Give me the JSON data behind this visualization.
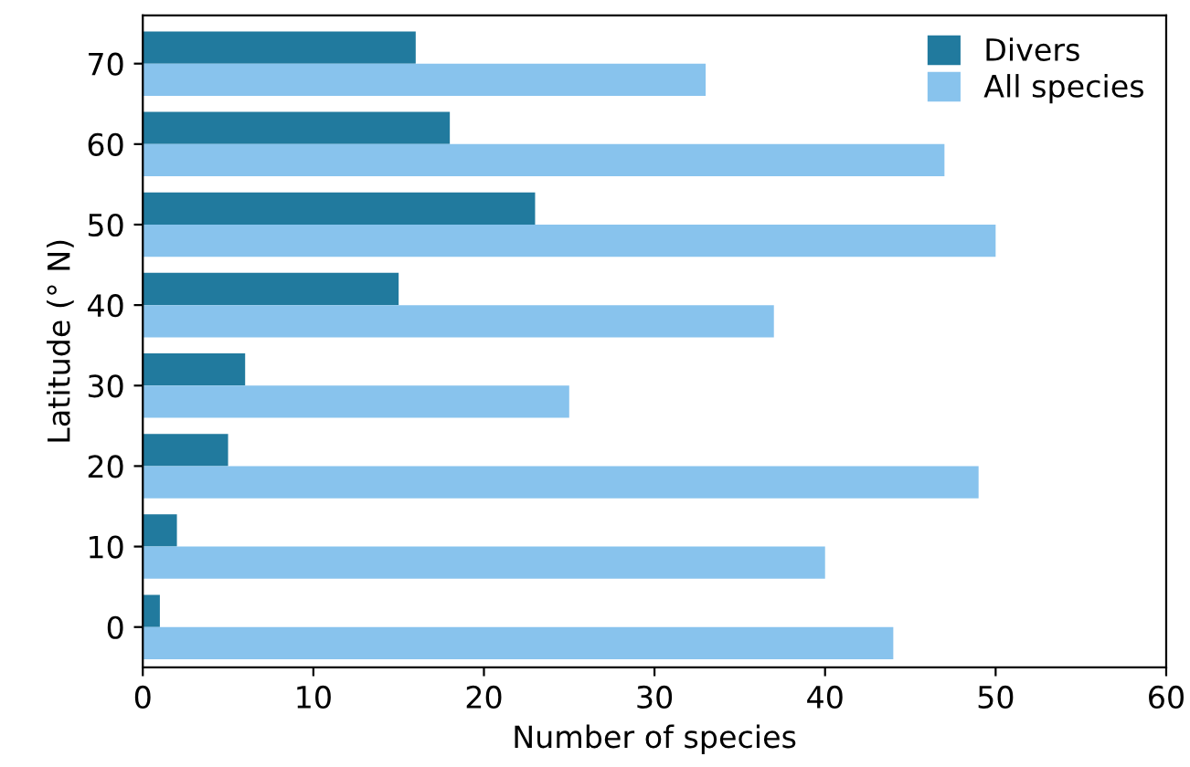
{
  "chart_data": {
    "type": "bar",
    "orientation": "horizontal",
    "categories": [
      "70",
      "60",
      "50",
      "40",
      "30",
      "20",
      "10",
      "0"
    ],
    "series": [
      {
        "name": "Divers",
        "color": "#217a9e",
        "values": [
          16,
          18,
          23,
          15,
          6,
          5,
          2,
          1
        ]
      },
      {
        "name": "All species",
        "color": "#88c3ed",
        "values": [
          33,
          47,
          50,
          37,
          25,
          49,
          40,
          44
        ]
      }
    ],
    "xlabel": "Number of species",
    "ylabel": "Latitude (° N)",
    "xlim": [
      0,
      60
    ],
    "xticks": [
      0,
      10,
      20,
      30,
      40,
      50,
      60
    ],
    "grid": false,
    "legend": "top right"
  }
}
